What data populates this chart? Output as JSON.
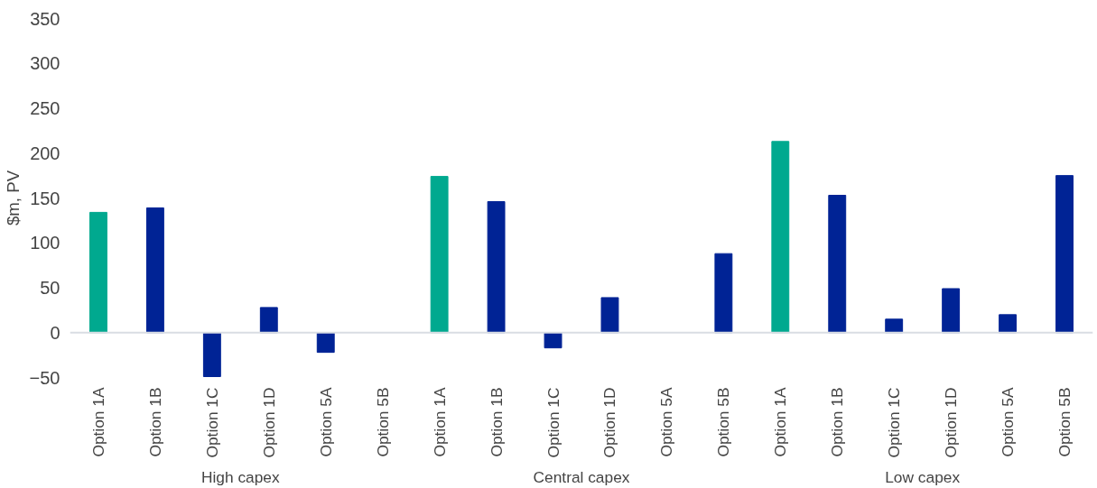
{
  "chart_data": {
    "type": "bar",
    "ylabel": "$m, PV",
    "categories": [
      "Option 1A",
      "Option 1B",
      "Option 1C",
      "Option 1D",
      "Option 5A",
      "Option 5B",
      "Option 1A",
      "Option 1B",
      "Option 1C",
      "Option 1D",
      "Option 5A",
      "Option 5B",
      "Option 1A",
      "Option 1B",
      "Option 1C",
      "Option 1D",
      "Option 5A",
      "Option 5B"
    ],
    "values": [
      134,
      139,
      -49,
      28,
      -22,
      null,
      174,
      146,
      -17,
      39,
      null,
      88,
      213,
      153,
      15,
      49,
      20,
      175
    ],
    "colors": [
      "#00a98f",
      "#002395",
      "#002395",
      "#002395",
      "#002395",
      "#002395",
      "#00a98f",
      "#002395",
      "#002395",
      "#002395",
      "#002395",
      "#002395",
      "#00a98f",
      "#002395",
      "#002395",
      "#002395",
      "#002395",
      "#002395"
    ],
    "annotations": [
      "High capex",
      "Central capex",
      "Low capex"
    ],
    "ylim": [
      -50,
      350
    ],
    "yticks": [
      -50,
      0,
      50,
      100,
      150,
      200,
      250,
      300,
      350
    ],
    "ref_lines": [
      {
        "axis": "y",
        "value": 0,
        "color": "#d9dde3"
      }
    ]
  }
}
